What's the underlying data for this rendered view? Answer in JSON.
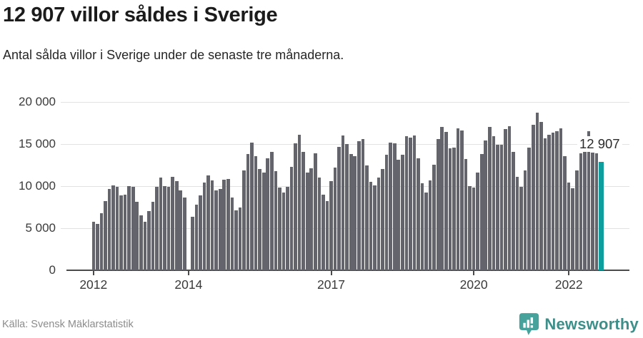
{
  "header": {
    "title": "12 907 villor såldes i Sverige",
    "subtitle": "Antal sålda villor i Sverige under de senaste tre månaderna."
  },
  "footer": {
    "source": "Källa: Svensk Mäklarstatistik",
    "brand": "Newsworthy"
  },
  "colors": {
    "bar": "#64646c",
    "highlight": "#0f9e9e",
    "grid": "#e2e2e2",
    "axis": "#4a4a4a",
    "brand_icon": "#46a29b",
    "brand_text": "#3e8e89"
  },
  "chart_data": {
    "type": "bar",
    "title": "12 907 villor såldes i Sverige",
    "subtitle": "Antal sålda villor i Sverige under de senaste tre månaderna.",
    "frequency": "monthly, rolling three months",
    "x_axis": {
      "tick_labels": [
        "2012",
        "2014",
        "2017",
        "2020",
        "2022"
      ],
      "tick_indices": [
        0,
        24,
        60,
        96,
        120
      ]
    },
    "y_axis": {
      "ticks": [
        0,
        5000,
        10000,
        15000,
        20000
      ],
      "tick_labels": [
        "0",
        "5 000",
        "10 000",
        "15 000",
        "20 000"
      ],
      "max": 20000
    },
    "grid": true,
    "values": [
      5750,
      5550,
      6800,
      8200,
      9650,
      10100,
      9900,
      8900,
      9000,
      10000,
      9900,
      8100,
      6500,
      5800,
      7000,
      8100,
      9900,
      11000,
      10000,
      9900,
      11100,
      10600,
      9500,
      8650,
      null,
      6350,
      7800,
      8900,
      10450,
      11300,
      10700,
      9500,
      9650,
      10800,
      10850,
      8650,
      7100,
      7450,
      11900,
      13800,
      15150,
      13550,
      12000,
      11600,
      13300,
      14100,
      11750,
      9850,
      9250,
      9950,
      12300,
      15100,
      16100,
      14100,
      11600,
      12150,
      13880,
      11050,
      8950,
      8230,
      10600,
      12230,
      14650,
      16000,
      15000,
      13800,
      13600,
      15350,
      15600,
      12500,
      10500,
      10050,
      11050,
      12050,
      13750,
      15150,
      15100,
      13150,
      13700,
      15900,
      15800,
      16000,
      13300,
      10300,
      9200,
      10650,
      12550,
      15600,
      17050,
      16450,
      14500,
      14550,
      16850,
      16650,
      13250,
      10000,
      9800,
      11650,
      13800,
      15450,
      17000,
      15950,
      14900,
      14900,
      16800,
      17150,
      14100,
      11100,
      9900,
      11900,
      14600,
      17250,
      18700,
      17600,
      15650,
      16100,
      16350,
      16500,
      16850,
      13550,
      10450,
      9750,
      11850,
      13900,
      14250,
      16500,
      13950,
      13900,
      12907
    ],
    "highlight_index": 128,
    "annotation": {
      "text": "12 907",
      "value": 12907
    }
  }
}
